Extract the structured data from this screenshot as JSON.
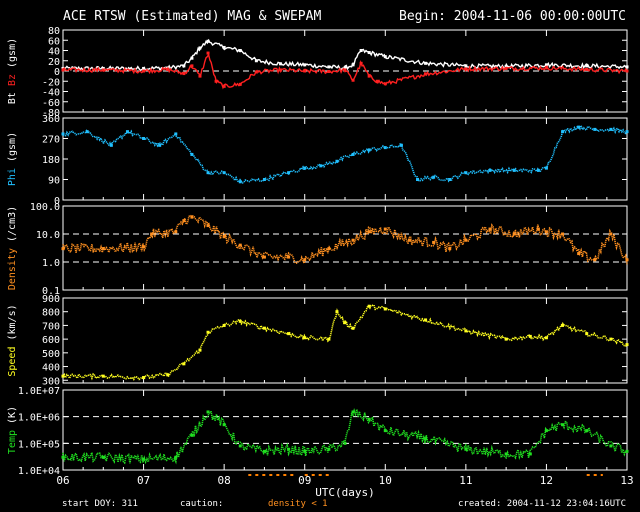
{
  "header": {
    "title": "ACE RTSW (Estimated) MAG & SWEPAM",
    "begin": "Begin: 2004-11-06 00:00:00UTC"
  },
  "footer": {
    "start_doy": "start DOY: 311",
    "caution": "caution:",
    "density_note": "density < 1",
    "created": "created: 2004-11-12 23:04:16UTC"
  },
  "colors": {
    "background": "#000000",
    "bt": "#ffffff",
    "bz": "#ff2020",
    "phi": "#20c0ff",
    "density": "#ff9020",
    "speed": "#ffff20",
    "temp": "#20e020",
    "caution_tick": "#ff8000"
  },
  "chart_data": [
    {
      "type": "line",
      "name": "mag",
      "ylabel": "Bt  Bz  (gsm)",
      "ylabel_parts": [
        "Bt",
        "Bz",
        "(gsm)"
      ],
      "ylim": [
        -80,
        80
      ],
      "yticks": [
        80,
        60,
        40,
        20,
        0,
        -20,
        -40,
        -60,
        -80
      ],
      "ytick_labels": [
        "80",
        "60",
        "40",
        "20",
        "0",
        "-20",
        "-40",
        "-60",
        "-80"
      ],
      "ref_lines": [
        0
      ],
      "series": [
        {
          "name": "Bt",
          "color": "#ffffff",
          "x": [
            6.0,
            6.5,
            7.0,
            7.3,
            7.5,
            7.6,
            7.7,
            7.8,
            8.0,
            8.2,
            8.4,
            8.7,
            9.0,
            9.3,
            9.5,
            9.6,
            9.7,
            9.8,
            10.0,
            10.5,
            11.0,
            11.5,
            12.0,
            12.5,
            13.0
          ],
          "y": [
            5,
            5,
            5,
            6,
            10,
            25,
            45,
            58,
            46,
            40,
            20,
            14,
            12,
            8,
            6,
            12,
            40,
            36,
            28,
            15,
            10,
            9,
            12,
            10,
            8
          ]
        },
        {
          "name": "Bz",
          "color": "#ff2020",
          "x": [
            6.0,
            6.5,
            7.0,
            7.3,
            7.5,
            7.6,
            7.7,
            7.8,
            7.9,
            8.0,
            8.2,
            8.4,
            8.7,
            9.0,
            9.3,
            9.5,
            9.6,
            9.7,
            9.8,
            9.9,
            10.0,
            10.5,
            11.0,
            11.5,
            12.0,
            12.5,
            13.0
          ],
          "y": [
            2,
            2,
            0,
            3,
            -5,
            10,
            -10,
            35,
            -20,
            -30,
            -26,
            -2,
            2,
            0,
            -1,
            2,
            -18,
            15,
            -10,
            -20,
            -25,
            -6,
            4,
            5,
            6,
            3,
            0
          ]
        }
      ]
    },
    {
      "type": "scatter",
      "name": "phi",
      "ylabel": "Phi (gsm)",
      "ylabel_parts": [
        "Phi",
        "(gsm)"
      ],
      "ylim": [
        0,
        360
      ],
      "yticks": [
        360,
        270,
        180,
        90,
        0
      ],
      "ytick_labels": [
        "360",
        "270",
        "180",
        "90",
        "0"
      ],
      "ref_lines": [],
      "series": [
        {
          "name": "Phi",
          "color": "#20c0ff",
          "x": [
            6.0,
            6.3,
            6.6,
            6.8,
            7.0,
            7.2,
            7.4,
            7.6,
            7.8,
            8.0,
            8.2,
            8.5,
            8.8,
            9.0,
            9.2,
            9.4,
            9.6,
            9.8,
            10.0,
            10.2,
            10.4,
            10.6,
            10.8,
            11.0,
            11.3,
            11.6,
            11.9,
            12.0,
            12.2,
            12.4,
            12.6,
            12.8,
            13.0
          ],
          "y": [
            290,
            300,
            240,
            300,
            270,
            240,
            290,
            200,
            120,
            120,
            80,
            90,
            120,
            140,
            150,
            170,
            200,
            220,
            230,
            240,
            90,
            100,
            90,
            120,
            130,
            130,
            130,
            140,
            300,
            320,
            310,
            310,
            300
          ]
        }
      ]
    },
    {
      "type": "scatter",
      "name": "density",
      "ylabel": "Density (/cm3)",
      "ylabel_parts": [
        "Density",
        "(/cm3)"
      ],
      "yscale": "log",
      "ylim": [
        0.1,
        100
      ],
      "yticks": [
        100,
        10,
        1,
        0.1
      ],
      "ytick_labels": [
        "100.0",
        "10.0",
        "1.0",
        "0.1"
      ],
      "ref_lines": [
        10,
        1
      ],
      "series": [
        {
          "name": "Density",
          "color": "#ff9020",
          "x": [
            6.0,
            6.5,
            7.0,
            7.1,
            7.4,
            7.5,
            7.6,
            7.8,
            8.0,
            8.2,
            8.5,
            8.8,
            9.0,
            9.3,
            9.6,
            9.8,
            10.0,
            10.3,
            10.6,
            10.8,
            11.0,
            11.3,
            11.6,
            11.9,
            12.0,
            12.2,
            12.4,
            12.6,
            12.8,
            13.0
          ],
          "y": [
            3,
            3,
            3.5,
            10,
            12,
            30,
            40,
            20,
            8,
            4,
            1.5,
            1.5,
            1.2,
            3,
            6,
            12,
            15,
            6,
            5,
            3,
            6,
            15,
            10,
            15,
            12,
            10,
            2,
            1.2,
            10,
            1.2
          ]
        }
      ]
    },
    {
      "type": "scatter",
      "name": "speed",
      "ylabel": "Speed (km/s)",
      "ylabel_parts": [
        "Speed",
        "(km/s)"
      ],
      "ylim": [
        280,
        900
      ],
      "yticks": [
        900,
        800,
        700,
        600,
        500,
        400,
        300
      ],
      "ytick_labels": [
        "900",
        "800",
        "700",
        "600",
        "500",
        "400",
        "300"
      ],
      "ref_lines": [],
      "series": [
        {
          "name": "Speed",
          "color": "#ffff20",
          "x": [
            6.0,
            6.5,
            7.0,
            7.3,
            7.5,
            7.7,
            7.8,
            8.0,
            8.2,
            8.5,
            8.8,
            9.0,
            9.3,
            9.4,
            9.5,
            9.6,
            9.8,
            10.0,
            10.5,
            11.0,
            11.5,
            11.8,
            12.0,
            12.2,
            12.5,
            12.8,
            13.0
          ],
          "y": [
            330,
            330,
            320,
            340,
            420,
            520,
            650,
            700,
            730,
            680,
            640,
            610,
            600,
            800,
            720,
            680,
            840,
            820,
            740,
            660,
            600,
            620,
            610,
            700,
            640,
            600,
            560
          ]
        }
      ]
    },
    {
      "type": "scatter",
      "name": "temp",
      "ylabel": "Temp (K)",
      "ylabel_parts": [
        "Temp",
        "(K)"
      ],
      "yscale": "log",
      "ylim": [
        10000,
        10000000
      ],
      "yticks": [
        10000000,
        1000000,
        100000,
        10000
      ],
      "ytick_labels": [
        "1.0E+07",
        "1.0E+06",
        "1.0E+05",
        "1.0E+04"
      ],
      "ref_lines": [
        1000000,
        100000
      ],
      "series": [
        {
          "name": "Temp",
          "color": "#20e020",
          "x": [
            6.0,
            6.5,
            7.0,
            7.4,
            7.6,
            7.8,
            8.0,
            8.2,
            8.5,
            8.8,
            9.0,
            9.3,
            9.5,
            9.6,
            9.8,
            10.0,
            10.5,
            11.0,
            11.5,
            11.8,
            12.0,
            12.2,
            12.5,
            12.8,
            13.0
          ],
          "y": [
            30000,
            30000,
            25000,
            30000,
            200000,
            1500000,
            500000,
            80000,
            50000,
            60000,
            50000,
            60000,
            100000,
            1500000,
            800000,
            300000,
            150000,
            60000,
            40000,
            40000,
            300000,
            500000,
            300000,
            80000,
            50000
          ]
        }
      ]
    }
  ],
  "x_axis": {
    "xlabel": "UTC(days)",
    "xlim": [
      6,
      13
    ],
    "ticks": [
      6,
      7,
      8,
      9,
      10,
      11,
      12,
      13
    ],
    "tick_labels": [
      "06",
      "07",
      "08",
      "09",
      "10",
      "11",
      "12",
      "13"
    ],
    "caution_segments": [
      [
        8.3,
        8.9
      ],
      [
        9.0,
        9.3
      ],
      [
        12.5,
        12.7
      ]
    ]
  }
}
